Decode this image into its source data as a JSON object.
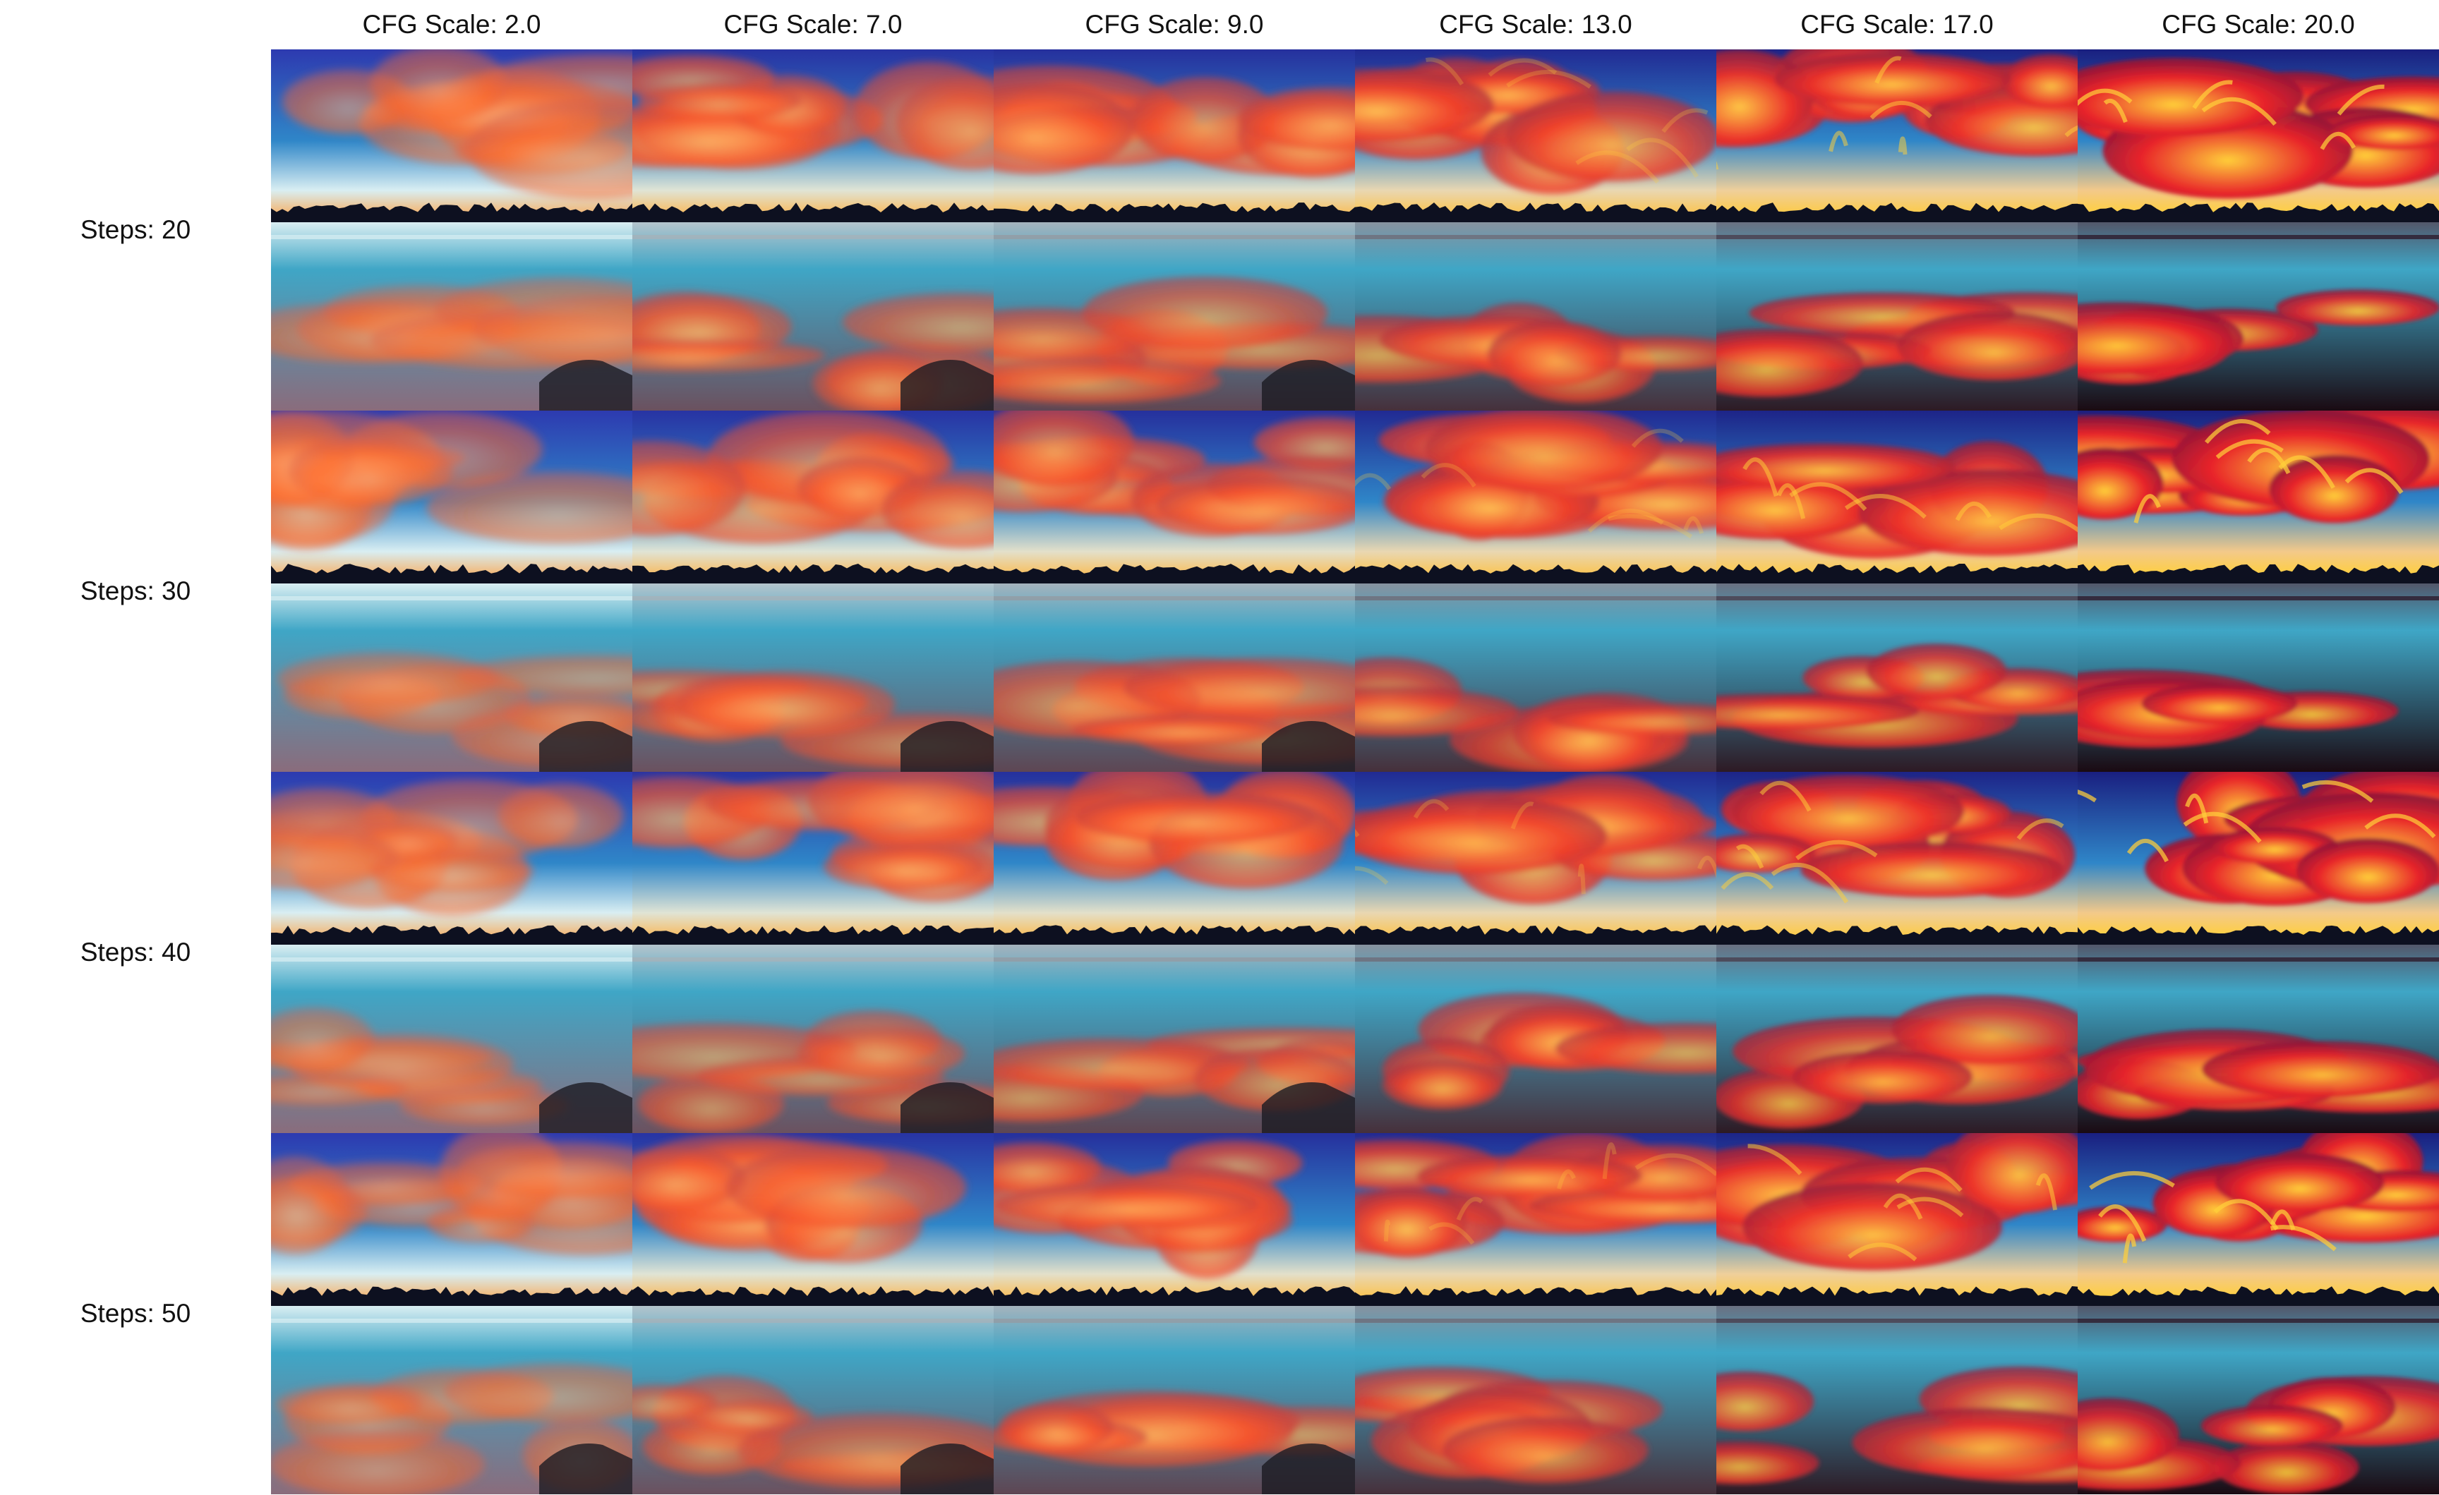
{
  "columns": [
    {
      "label": "CFG Scale: 2.0",
      "cfg": 2.0
    },
    {
      "label": "CFG Scale: 7.0",
      "cfg": 7.0
    },
    {
      "label": "CFG Scale: 9.0",
      "cfg": 9.0
    },
    {
      "label": "CFG Scale: 13.0",
      "cfg": 13.0
    },
    {
      "label": "CFG Scale: 17.0",
      "cfg": 17.0
    },
    {
      "label": "CFG Scale: 20.0",
      "cfg": 20.0
    }
  ],
  "rows": [
    {
      "label": "Steps: 20",
      "steps": 20
    },
    {
      "label": "Steps: 30",
      "steps": 30
    },
    {
      "label": "Steps: 40",
      "steps": 40
    },
    {
      "label": "Steps: 50",
      "steps": 50
    }
  ],
  "image_description": "Grid of generated images of a lake at sunset with fiery orange clouds reflected in calm water; higher CFG scale gives more saturated, glowing red-orange clouds",
  "palette": {
    "sky_blue": "#2f86c8",
    "deep_blue": "#2d3ab0",
    "cloud_orange": "#ff6a2a",
    "cloud_red": "#e8232a",
    "glow_yellow": "#ffcf3a",
    "horizon_dark": "#0d1020",
    "water_teal": "#3fa6c6",
    "pale": "#d9eef2"
  }
}
